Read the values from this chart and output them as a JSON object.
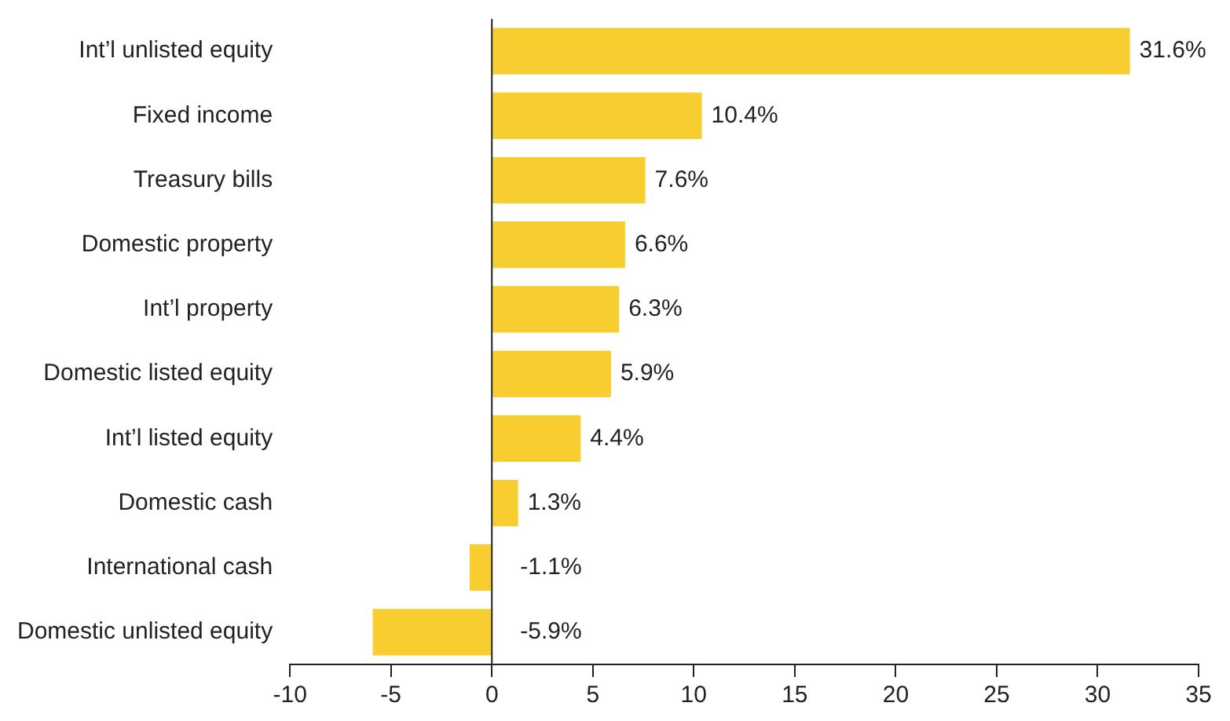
{
  "chart_data": {
    "type": "bar",
    "orientation": "horizontal",
    "categories": [
      "Int’l unlisted equity",
      "Fixed income",
      "Treasury bills",
      "Domestic property",
      "Int’l property",
      "Domestic listed equity",
      "Int’l listed equity",
      "Domestic cash",
      "International cash",
      "Domestic unlisted equity"
    ],
    "values": [
      31.6,
      10.4,
      7.6,
      6.6,
      6.3,
      5.9,
      4.4,
      1.3,
      -1.1,
      -5.9
    ],
    "value_labels": [
      "31.6%",
      "10.4%",
      "7.6%",
      "6.6%",
      "6.3%",
      "5.9%",
      "4.4%",
      "1.3%",
      "-1.1%",
      "-5.9%"
    ],
    "color": "#f7cd2f",
    "xlim": [
      -10,
      35
    ],
    "xticks": [
      -10,
      -5,
      0,
      5,
      10,
      15,
      20,
      25,
      30,
      35
    ],
    "ref_lines": [
      {
        "axis": "x",
        "value": 0,
        "color": "#222222"
      }
    ],
    "grid": false,
    "legend": false
  }
}
